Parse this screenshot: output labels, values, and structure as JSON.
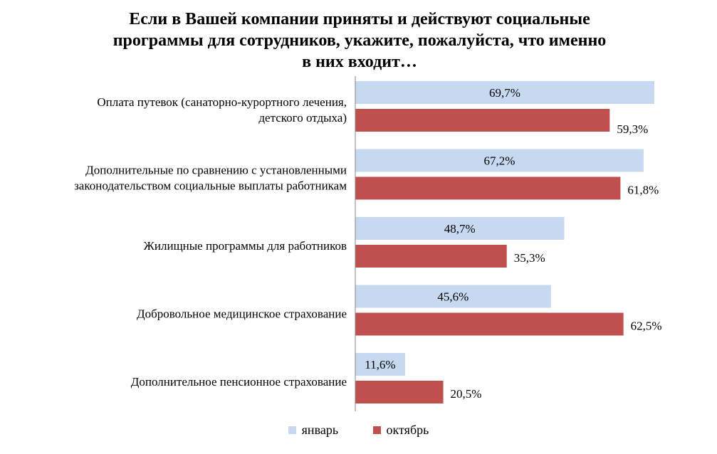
{
  "title": "Если в Вашей компании приняты и действуют социальные программы для сотрудников, укажите, пожалуйста, что именно в них входит…",
  "title_lines": [
    "Если в Вашей компании приняты и действуют социальные",
    "программы для сотрудников, укажите, пожалуйста, что именно",
    "в них входит…"
  ],
  "colors": {
    "january": "#c6d9f1",
    "october": "#c0504d",
    "axis": "#868686"
  },
  "chart_data": {
    "type": "bar",
    "orientation": "horizontal",
    "title": "Если в Вашей компании приняты и действуют социальные программы для сотрудников, укажите, пожалуйста, что именно в них входит…",
    "categories": [
      [
        "Оплата путевок (санаторно-курортного лечения,",
        "детского отдыха)"
      ],
      [
        "Дополнительные по сравнению с установленными",
        "законодательством социальные выплаты работникам"
      ],
      [
        "Жилищные программы для работников"
      ],
      [
        "Добровольное медицинское страхование"
      ],
      [
        "Дополнительное пенсионное страхование"
      ]
    ],
    "series": [
      {
        "name": "январь",
        "values": [
          69.7,
          67.2,
          48.7,
          45.6,
          11.6
        ],
        "labels": [
          "69,7%",
          "67,2%",
          "48,7%",
          "45,6%",
          "11,6%"
        ]
      },
      {
        "name": "октябрь",
        "values": [
          59.3,
          61.8,
          35.3,
          62.5,
          20.5
        ],
        "labels": [
          "59,3%",
          "61,8%",
          "35,3%",
          "62,5%",
          "20,5%"
        ]
      }
    ],
    "xlim": [
      0,
      70
    ],
    "grid": false,
    "legend_position": "bottom"
  }
}
